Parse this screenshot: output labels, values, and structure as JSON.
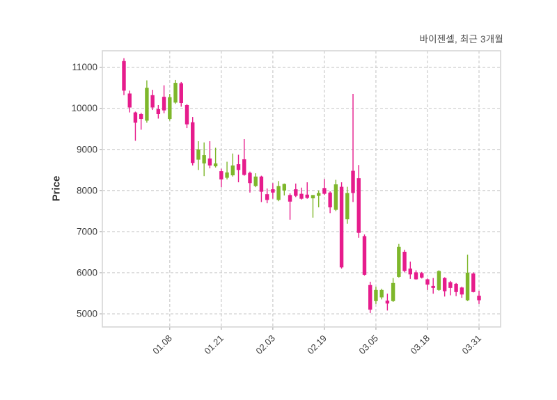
{
  "page": {
    "background": "#ffffff"
  },
  "chart_data": {
    "type": "candlestick",
    "title": "바이젠셀, 최근 3개월",
    "ylabel": "Price",
    "grid": true,
    "legend": false,
    "ylim": [
      4680,
      11400
    ],
    "yticks": [
      5000,
      6000,
      7000,
      8000,
      9000,
      10000,
      11000
    ],
    "xticks": [
      {
        "i": 8,
        "label": "01.08"
      },
      {
        "i": 17,
        "label": "01.21"
      },
      {
        "i": 26,
        "label": "02.03"
      },
      {
        "i": 35,
        "label": "02.19"
      },
      {
        "i": 44,
        "label": "03.05"
      },
      {
        "i": 53,
        "label": "03.18"
      },
      {
        "i": 62,
        "label": "03.31"
      }
    ],
    "colors": {
      "up": "#7eb72b",
      "down": "#e61c8c",
      "grid": "#cbcbcb",
      "border": "#d6d6d6",
      "tick_text": "#3b3b3b",
      "title_text": "#4f4f4f",
      "plot_bg": "#ffffff"
    },
    "candles_format": [
      "open",
      "high",
      "low",
      "close"
    ],
    "candles": [
      [
        11150,
        11220,
        10320,
        10430
      ],
      [
        10360,
        10430,
        9900,
        10020
      ],
      [
        9900,
        9920,
        9210,
        9650
      ],
      [
        9860,
        9890,
        9480,
        9740
      ],
      [
        9700,
        10680,
        9650,
        10500
      ],
      [
        10320,
        10450,
        9960,
        10020
      ],
      [
        9980,
        10080,
        9750,
        9860
      ],
      [
        10280,
        10560,
        9880,
        9950
      ],
      [
        9740,
        10350,
        9700,
        10270
      ],
      [
        10140,
        10690,
        10110,
        10620
      ],
      [
        10610,
        10640,
        10040,
        10130
      ],
      [
        10080,
        10100,
        9520,
        9610
      ],
      [
        9660,
        9790,
        8610,
        8670
      ],
      [
        8750,
        9200,
        8500,
        9000
      ],
      [
        8660,
        9170,
        8350,
        8860
      ],
      [
        8780,
        9200,
        8540,
        8610
      ],
      [
        8590,
        9040,
        8560,
        8660
      ],
      [
        8470,
        8530,
        8080,
        8270
      ],
      [
        8310,
        8700,
        8270,
        8440
      ],
      [
        8370,
        8900,
        8340,
        8610
      ],
      [
        8640,
        8870,
        8200,
        8500
      ],
      [
        8760,
        9250,
        8360,
        8380
      ],
      [
        8430,
        8460,
        7950,
        8180
      ],
      [
        8110,
        8420,
        8080,
        8340
      ],
      [
        8340,
        8360,
        7720,
        7970
      ],
      [
        7910,
        8050,
        7690,
        7770
      ],
      [
        8030,
        8180,
        7800,
        7950
      ],
      [
        7770,
        8230,
        7740,
        8110
      ],
      [
        8000,
        8170,
        7880,
        8160
      ],
      [
        7890,
        7930,
        7290,
        7730
      ],
      [
        8030,
        8170,
        7840,
        7870
      ],
      [
        7920,
        8070,
        7780,
        7800
      ],
      [
        7900,
        8200,
        7800,
        7820
      ],
      [
        7810,
        7890,
        7340,
        7890
      ],
      [
        7870,
        8000,
        7590,
        7940
      ],
      [
        8060,
        8280,
        7890,
        7920
      ],
      [
        7950,
        7980,
        7450,
        7590
      ],
      [
        7530,
        8260,
        7500,
        8150
      ],
      [
        8090,
        8200,
        6100,
        6130
      ],
      [
        7300,
        8090,
        7190,
        7940
      ],
      [
        8480,
        10350,
        7720,
        7940
      ],
      [
        8300,
        8620,
        6850,
        6970
      ],
      [
        6890,
        6930,
        5930,
        5950
      ],
      [
        5700,
        5780,
        5020,
        5100
      ],
      [
        5310,
        5660,
        5240,
        5580
      ],
      [
        5400,
        5610,
        5350,
        5580
      ],
      [
        5320,
        5490,
        5080,
        5250
      ],
      [
        5310,
        5870,
        5290,
        5750
      ],
      [
        5900,
        6700,
        5880,
        6630
      ],
      [
        6510,
        6560,
        6010,
        6040
      ],
      [
        6100,
        6270,
        5850,
        5960
      ],
      [
        6010,
        6060,
        5830,
        5840
      ],
      [
        5990,
        6020,
        5860,
        5880
      ],
      [
        5840,
        5860,
        5580,
        5710
      ],
      [
        5680,
        5870,
        5490,
        5630
      ],
      [
        5580,
        6060,
        5560,
        6040
      ],
      [
        5870,
        5890,
        5420,
        5550
      ],
      [
        5770,
        5800,
        5450,
        5630
      ],
      [
        5730,
        5750,
        5430,
        5530
      ],
      [
        5640,
        5660,
        5390,
        5470
      ],
      [
        5330,
        6440,
        5310,
        6000
      ],
      [
        5980,
        6010,
        5520,
        5530
      ],
      [
        5440,
        5560,
        5240,
        5330
      ]
    ]
  }
}
